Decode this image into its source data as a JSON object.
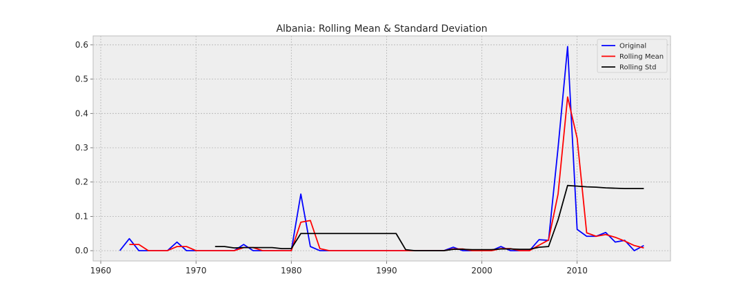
{
  "chart_data": {
    "type": "line",
    "title": "Albania: Rolling Mean & Standard Deviation",
    "xlabel": "",
    "ylabel": "",
    "xlim": [
      1959.2,
      2019.8
    ],
    "ylim": [
      -0.03,
      0.626
    ],
    "x_ticks": [
      1960,
      1970,
      1980,
      1990,
      2000,
      2010
    ],
    "x_tick_labels": [
      "1960",
      "1970",
      "1980",
      "1990",
      "2000",
      "2010"
    ],
    "y_ticks": [
      0.0,
      0.1,
      0.2,
      0.3,
      0.4,
      0.5,
      0.6
    ],
    "y_tick_labels": [
      "0.0",
      "0.1",
      "0.2",
      "0.3",
      "0.4",
      "0.5",
      "0.6"
    ],
    "grid": true,
    "legend_position": "top-right",
    "series": [
      {
        "name": "Original",
        "color": "#0000ff",
        "x": [
          1962,
          1963,
          1964,
          1965,
          1966,
          1967,
          1968,
          1969,
          1970,
          1971,
          1972,
          1973,
          1974,
          1975,
          1976,
          1977,
          1978,
          1979,
          1980,
          1981,
          1982,
          1983,
          1984,
          1985,
          1986,
          1987,
          1988,
          1989,
          1990,
          1991,
          1992,
          1993,
          1994,
          1995,
          1996,
          1997,
          1998,
          1999,
          2000,
          2001,
          2002,
          2003,
          2004,
          2005,
          2006,
          2007,
          2008,
          2009,
          2010,
          2011,
          2012,
          2013,
          2014,
          2015,
          2016,
          2017
        ],
        "y": [
          0.0,
          0.035,
          0.0,
          0.0,
          0.0,
          0.0,
          0.025,
          0.0,
          0.0,
          0.0,
          0.0,
          0.0,
          0.0,
          0.018,
          0.0,
          0.0,
          0.0,
          0.0,
          0.0,
          0.165,
          0.012,
          0.0,
          0.0,
          0.0,
          0.0,
          0.0,
          0.0,
          0.0,
          0.0,
          0.0,
          0.0,
          0.0,
          0.0,
          0.0,
          0.0,
          0.01,
          0.0,
          0.0,
          0.0,
          0.0,
          0.012,
          0.0,
          0.0,
          0.0,
          0.032,
          0.03,
          0.3,
          0.595,
          0.062,
          0.042,
          0.042,
          0.053,
          0.025,
          0.03,
          0.0,
          0.015
        ]
      },
      {
        "name": "Rolling Mean",
        "color": "#ff0000",
        "x": [
          1963,
          1964,
          1965,
          1966,
          1967,
          1968,
          1969,
          1970,
          1971,
          1972,
          1973,
          1974,
          1975,
          1976,
          1977,
          1978,
          1979,
          1980,
          1981,
          1982,
          1983,
          1984,
          1985,
          1986,
          1987,
          1988,
          1989,
          1990,
          1991,
          1992,
          1993,
          1994,
          1995,
          1996,
          1997,
          1998,
          1999,
          2000,
          2001,
          2002,
          2003,
          2004,
          2005,
          2006,
          2007,
          2008,
          2009,
          2010,
          2011,
          2012,
          2013,
          2014,
          2015,
          2016,
          2017
        ],
        "y": [
          0.018,
          0.018,
          0.0,
          0.0,
          0.0,
          0.012,
          0.012,
          0.0,
          0.0,
          0.0,
          0.0,
          0.0,
          0.009,
          0.009,
          0.0,
          0.0,
          0.0,
          0.0,
          0.083,
          0.088,
          0.006,
          0.0,
          0.0,
          0.0,
          0.0,
          0.0,
          0.0,
          0.0,
          0.0,
          0.0,
          0.0,
          0.0,
          0.0,
          0.0,
          0.005,
          0.005,
          0.0,
          0.0,
          0.0,
          0.006,
          0.006,
          0.0,
          0.0,
          0.016,
          0.031,
          0.165,
          0.448,
          0.328,
          0.052,
          0.042,
          0.047,
          0.039,
          0.028,
          0.015,
          0.008
        ]
      },
      {
        "name": "Rolling Std",
        "color": "#000000",
        "x": [
          1972,
          1973,
          1974,
          1975,
          1976,
          1977,
          1978,
          1979,
          1980,
          1981,
          1982,
          1983,
          1984,
          1985,
          1986,
          1987,
          1988,
          1989,
          1990,
          1991,
          1992,
          1993,
          1994,
          1995,
          1996,
          1997,
          1998,
          1999,
          2000,
          2001,
          2002,
          2003,
          2004,
          2005,
          2006,
          2007,
          2008,
          2009,
          2010,
          2011,
          2012,
          2013,
          2014,
          2015,
          2016,
          2017
        ],
        "y": [
          0.012,
          0.012,
          0.008,
          0.009,
          0.009,
          0.009,
          0.009,
          0.006,
          0.006,
          0.05,
          0.05,
          0.05,
          0.05,
          0.05,
          0.05,
          0.05,
          0.05,
          0.05,
          0.05,
          0.05,
          0.003,
          0.0,
          0.0,
          0.0,
          0.0,
          0.004,
          0.004,
          0.003,
          0.003,
          0.003,
          0.005,
          0.005,
          0.004,
          0.004,
          0.01,
          0.012,
          0.09,
          0.19,
          0.188,
          0.186,
          0.185,
          0.183,
          0.182,
          0.181,
          0.181,
          0.181
        ]
      }
    ]
  }
}
